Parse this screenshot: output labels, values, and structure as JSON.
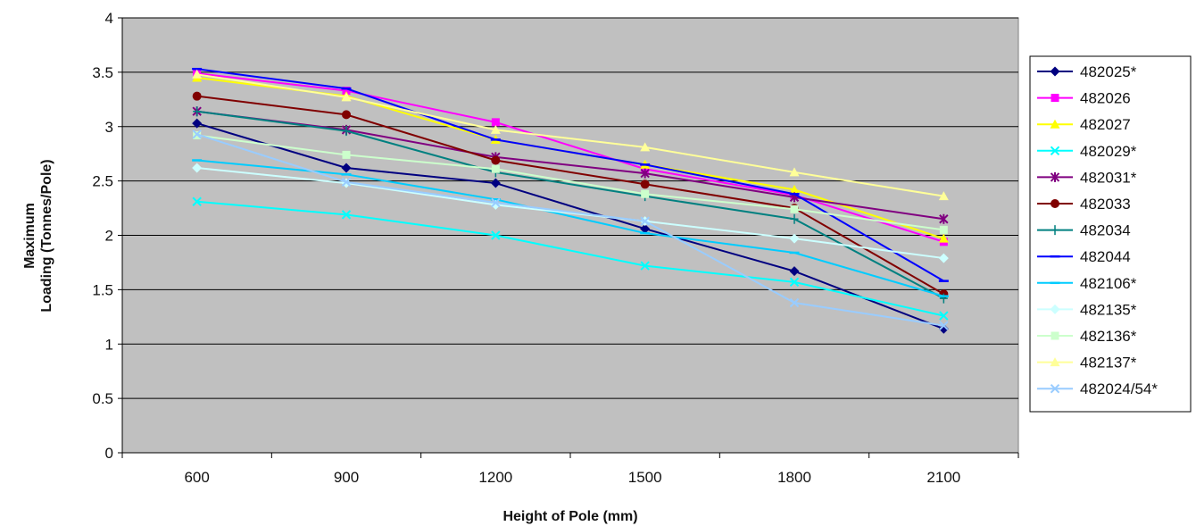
{
  "chart_data": {
    "type": "line",
    "title": "",
    "xlabel": "Height of Pole (mm)",
    "ylabel_lines": [
      "Maximum",
      "Loading (Tonnes/Pole)"
    ],
    "x": [
      600,
      900,
      1200,
      1500,
      1800,
      2100
    ],
    "ylim": [
      0,
      4
    ],
    "yticks": [
      "0",
      "0.5",
      "1",
      "1.5",
      "2",
      "2.5",
      "3",
      "3.5",
      "4"
    ],
    "grid": true,
    "plot_background": "#c0c0c0",
    "legend_position": "right",
    "series": [
      {
        "name": "482025*",
        "color": "#000080",
        "marker": "diamond",
        "values": [
          3.03,
          2.62,
          2.48,
          2.06,
          1.67,
          1.14
        ]
      },
      {
        "name": "482026",
        "color": "#ff00ff",
        "marker": "square",
        "values": [
          3.49,
          3.33,
          3.04,
          2.61,
          2.37,
          1.94
        ]
      },
      {
        "name": "482027",
        "color": "#ffff00",
        "marker": "triangle",
        "values": [
          3.45,
          3.28,
          2.88,
          2.65,
          2.42,
          1.97
        ]
      },
      {
        "name": "482029*",
        "color": "#00ffff",
        "marker": "x",
        "values": [
          2.31,
          2.19,
          2.0,
          1.72,
          1.57,
          1.26
        ]
      },
      {
        "name": "482031*",
        "color": "#800080",
        "marker": "star",
        "values": [
          3.14,
          2.97,
          2.72,
          2.57,
          2.35,
          2.15
        ]
      },
      {
        "name": "482033",
        "color": "#800000",
        "marker": "circle",
        "values": [
          3.28,
          3.11,
          2.69,
          2.47,
          2.25,
          1.46
        ]
      },
      {
        "name": "482034",
        "color": "#008080",
        "marker": "plus",
        "values": [
          3.14,
          2.96,
          2.58,
          2.36,
          2.15,
          1.42
        ]
      },
      {
        "name": "482044",
        "color": "#0000ff",
        "marker": "dash",
        "values": [
          3.53,
          3.35,
          2.88,
          2.65,
          2.38,
          1.58
        ]
      },
      {
        "name": "482106*",
        "color": "#00ccff",
        "marker": "dash",
        "values": [
          2.69,
          2.56,
          2.33,
          2.02,
          1.84,
          1.44
        ]
      },
      {
        "name": "482135*",
        "color": "#ccffff",
        "marker": "diamond",
        "values": [
          2.62,
          2.48,
          2.28,
          2.13,
          1.97,
          1.79
        ]
      },
      {
        "name": "482136*",
        "color": "#ccffcc",
        "marker": "square",
        "values": [
          2.92,
          2.74,
          2.61,
          2.38,
          2.24,
          2.05
        ]
      },
      {
        "name": "482137*",
        "color": "#ffff99",
        "marker": "triangle",
        "values": [
          3.48,
          3.27,
          2.97,
          2.81,
          2.58,
          2.36
        ]
      },
      {
        "name": "482024/54*",
        "color": "#99ccff",
        "marker": "x",
        "values": [
          2.93,
          2.49,
          2.3,
          2.13,
          1.38,
          1.17
        ]
      }
    ]
  }
}
